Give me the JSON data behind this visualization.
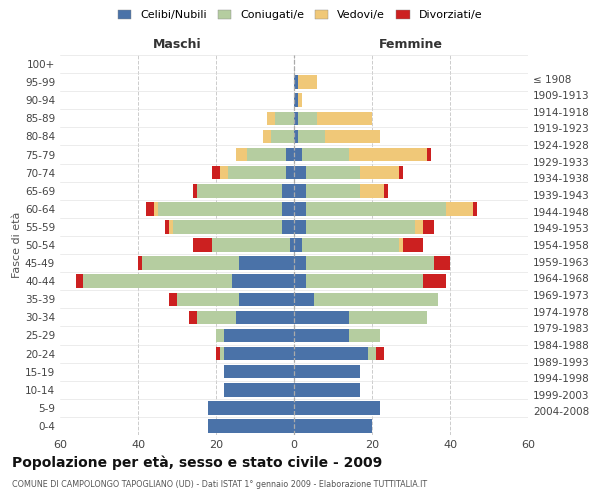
{
  "age_groups": [
    "0-4",
    "5-9",
    "10-14",
    "15-19",
    "20-24",
    "25-29",
    "30-34",
    "35-39",
    "40-44",
    "45-49",
    "50-54",
    "55-59",
    "60-64",
    "65-69",
    "70-74",
    "75-79",
    "80-84",
    "85-89",
    "90-94",
    "95-99",
    "100+"
  ],
  "birth_years": [
    "2004-2008",
    "1999-2003",
    "1994-1998",
    "1989-1993",
    "1984-1988",
    "1979-1983",
    "1974-1978",
    "1969-1973",
    "1964-1968",
    "1959-1963",
    "1954-1958",
    "1949-1953",
    "1944-1948",
    "1939-1943",
    "1934-1938",
    "1929-1933",
    "1924-1928",
    "1919-1923",
    "1914-1918",
    "1909-1913",
    "≤ 1908"
  ],
  "colors": {
    "celibi": "#4a72a8",
    "coniugati": "#b5cda0",
    "vedovi": "#f0c878",
    "divorziati": "#cc2020"
  },
  "maschi": {
    "celibi": [
      22,
      22,
      18,
      18,
      18,
      18,
      15,
      14,
      16,
      14,
      1,
      3,
      3,
      3,
      2,
      2,
      0,
      0,
      0,
      0,
      0
    ],
    "coniugati": [
      0,
      0,
      0,
      0,
      1,
      2,
      10,
      16,
      38,
      25,
      20,
      28,
      32,
      22,
      15,
      10,
      6,
      5,
      0,
      0,
      0
    ],
    "vedovi": [
      0,
      0,
      0,
      0,
      0,
      0,
      0,
      0,
      0,
      0,
      0,
      1,
      1,
      0,
      2,
      3,
      2,
      2,
      0,
      0,
      0
    ],
    "divorziati": [
      0,
      0,
      0,
      0,
      1,
      0,
      2,
      2,
      2,
      1,
      5,
      1,
      2,
      1,
      2,
      0,
      0,
      0,
      0,
      0,
      0
    ]
  },
  "femmine": {
    "nubili": [
      20,
      22,
      17,
      17,
      19,
      14,
      14,
      5,
      3,
      3,
      2,
      3,
      3,
      3,
      3,
      2,
      1,
      1,
      1,
      1,
      0
    ],
    "coniugate": [
      0,
      0,
      0,
      0,
      2,
      8,
      20,
      32,
      30,
      33,
      25,
      28,
      36,
      14,
      14,
      12,
      7,
      5,
      0,
      0,
      0
    ],
    "vedove": [
      0,
      0,
      0,
      0,
      0,
      0,
      0,
      0,
      0,
      0,
      1,
      2,
      7,
      6,
      10,
      20,
      14,
      14,
      1,
      5,
      0
    ],
    "divorziate": [
      0,
      0,
      0,
      0,
      2,
      0,
      0,
      0,
      6,
      4,
      5,
      3,
      1,
      1,
      1,
      1,
      0,
      0,
      0,
      0,
      0
    ]
  },
  "xlim": 60,
  "title": "Popolazione per età, sesso e stato civile - 2009",
  "subtitle": "COMUNE DI CAMPOLONGO TAPOGLIANO (UD) - Dati ISTAT 1° gennaio 2009 - Elaborazione TUTTITALIA.IT",
  "ylabel_left": "Fasce di età",
  "xlabel_left": "Maschi",
  "xlabel_right": "Femmine",
  "legend_labels": [
    "Celibi/Nubili",
    "Coniugati/e",
    "Vedovi/e",
    "Divorziati/e"
  ]
}
